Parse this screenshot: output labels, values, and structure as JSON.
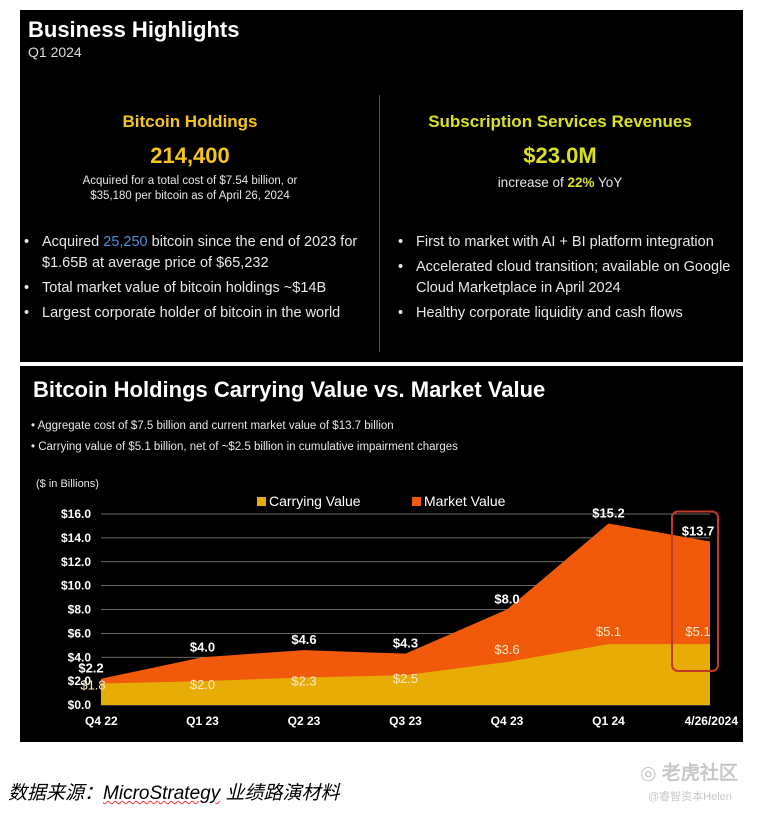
{
  "highlights": {
    "title": "Business Highlights",
    "subtitle": "Q1 2024",
    "left": {
      "heading": "Bitcoin Holdings",
      "big_value": "214,400",
      "detail_line1": "Acquired for a total cost of $7.54 billion, or",
      "detail_line2": "$35,180 per bitcoin as of April 26, 2024",
      "bullets": [
        {
          "pre": "Acquired ",
          "hl": "25,250",
          "post": " bitcoin since the end of 2023 for $1.65B at average price of $65,232"
        },
        {
          "pre": "Total market value of bitcoin holdings ~$14B",
          "hl": "",
          "post": ""
        },
        {
          "pre": "Largest corporate holder of bitcoin in the world",
          "hl": "",
          "post": ""
        }
      ]
    },
    "right": {
      "heading": "Subscription Services Revenues",
      "big_value": "$23.0M",
      "growth_pre": "increase of ",
      "growth_value": "22%",
      "growth_post": " YoY",
      "bullets": [
        "First to market with AI + BI platform integration",
        "Accelerated cloud transition; available on Google Cloud Marketplace in April 2024",
        "Healthy corporate liquidity and cash flows"
      ]
    }
  },
  "chart_section": {
    "title": "Bitcoin Holdings Carrying Value vs. Market Value",
    "notes": [
      "Aggregate cost of $7.5 billion and current market value of $13.7 billion",
      "Carrying value of $5.1 billion, net of ~$2.5 billion in cumulative impairment charges"
    ]
  },
  "chart_data": {
    "type": "area",
    "unit_label": "($ in Billions)",
    "categories": [
      "Q4 22",
      "Q1 23",
      "Q2 23",
      "Q3 23",
      "Q4 23",
      "Q1 24",
      "4/26/2024"
    ],
    "series": [
      {
        "name": "Market Value",
        "values": [
          2.2,
          4.0,
          4.6,
          4.3,
          8.0,
          15.2,
          13.7
        ],
        "labels": [
          "$2.2",
          "$4.0",
          "$4.6",
          "$4.3",
          "$8.0",
          "$15.2",
          "$13.7"
        ],
        "color": "#f05a0a"
      },
      {
        "name": "Carrying Value",
        "values": [
          1.8,
          2.0,
          2.3,
          2.5,
          3.6,
          5.1,
          5.1
        ],
        "labels": [
          "$1.8",
          "$2.0",
          "$2.3",
          "$2.5",
          "$3.6",
          "$5.1",
          "$5.1"
        ],
        "color": "#e8ac07"
      }
    ],
    "yticks": [
      "$0.0",
      "$2.0",
      "$4.0",
      "$6.0",
      "$8.0",
      "$10.0",
      "$12.0",
      "$14.0",
      "$16.0"
    ],
    "ylim": [
      0,
      16
    ],
    "legend_position": "top-center",
    "grid": true,
    "highlight_color": "#c0392b"
  },
  "footer": {
    "caption_pre": "数据来源：",
    "caption_brand": "MicroStrategy",
    "caption_post": " 业绩路演材料",
    "watermark_main": "老虎社区",
    "watermark_sub": "@睿智资本Helen"
  }
}
